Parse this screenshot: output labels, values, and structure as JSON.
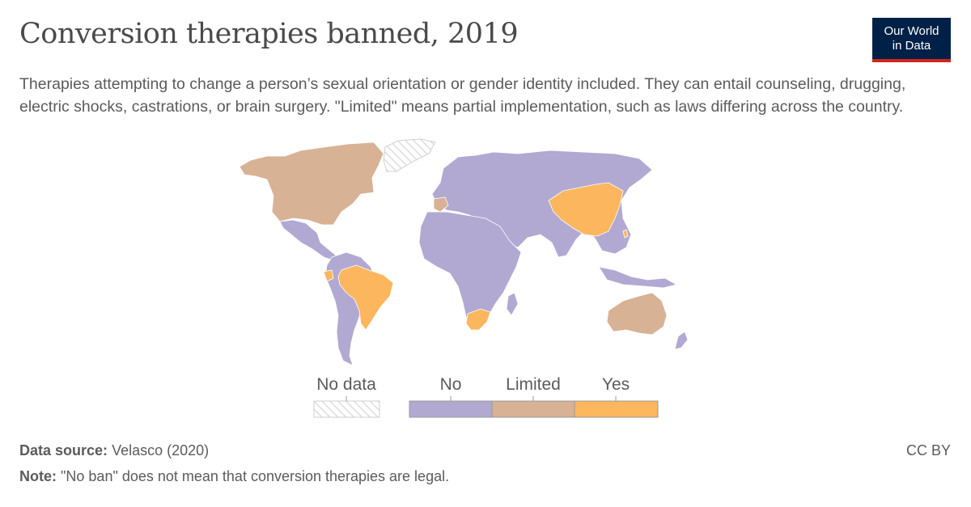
{
  "header": {
    "title": "Conversion therapies banned, 2019",
    "subtitle": "Therapies attempting to change a person’s sexual orientation or gender identity included. They can entail counseling, drugging, electric shocks, castrations, or brain surgery. \"Limited\" means partial implementation, such as laws differing across the country.",
    "logo_line1": "Our World",
    "logo_line2": "in Data"
  },
  "colors": {
    "no": "#b2a9d2",
    "limited": "#d8b295",
    "yes": "#fbb65e",
    "no_data": "#f0f0f0",
    "logo_bg": "#002147",
    "logo_stripe": "#ce261e"
  },
  "legend": {
    "no_data": "No data",
    "categories": [
      {
        "key": "no",
        "label": "No"
      },
      {
        "key": "limited",
        "label": "Limited"
      },
      {
        "key": "yes",
        "label": "Yes"
      }
    ]
  },
  "footer": {
    "source_label": "Data source:",
    "source_value": "Velasco (2020)",
    "note_label": "Note:",
    "note_value": "\"No ban\" does not mean that conversion therapies are legal.",
    "license": "CC BY"
  }
}
